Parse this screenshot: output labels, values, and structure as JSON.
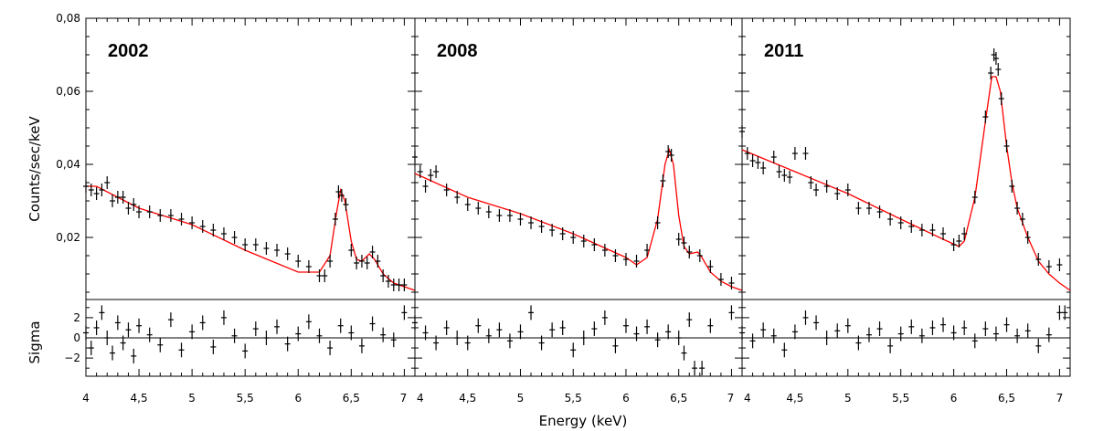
{
  "figure": {
    "ylabel_top": "Counts/sec/keV",
    "ylabel_bottom": "Sigma",
    "xlabel": "Energy (keV)"
  },
  "colors": {
    "model": "#ff0000",
    "data": "#000000",
    "frame": "#000000"
  },
  "chart_data": [
    {
      "type": "line",
      "title": "2002",
      "xlim": [
        4,
        7.1
      ],
      "ylim": [
        0.003,
        0.08
      ],
      "xticks": [
        4,
        4.5,
        5,
        5.5,
        6,
        6.5,
        7
      ],
      "xtick_labels": [
        "4",
        "4,5",
        "5",
        "5,5",
        "6",
        "6,5",
        "7"
      ],
      "yticks": [
        0.02,
        0.04,
        0.06,
        0.08
      ],
      "ytick_labels": [
        "0,02",
        "0,04",
        "0,06",
        "0,08"
      ],
      "model": {
        "x": [
          4.0,
          4.1,
          4.3,
          4.5,
          5.0,
          5.5,
          6.0,
          6.2,
          6.3,
          6.36,
          6.4,
          6.44,
          6.5,
          6.55,
          6.6,
          6.67,
          6.72,
          6.8,
          6.9,
          7.0,
          7.1
        ],
        "y": [
          0.034,
          0.034,
          0.031,
          0.028,
          0.0235,
          0.0165,
          0.0105,
          0.0105,
          0.015,
          0.0265,
          0.033,
          0.03,
          0.019,
          0.014,
          0.0135,
          0.0155,
          0.014,
          0.01,
          0.0075,
          0.0065,
          0.0055
        ]
      },
      "data": {
        "x": [
          4.0,
          4.05,
          4.1,
          4.15,
          4.2,
          4.25,
          4.3,
          4.35,
          4.4,
          4.45,
          4.5,
          4.6,
          4.7,
          4.8,
          4.9,
          5.0,
          5.1,
          5.2,
          5.3,
          5.4,
          5.5,
          5.6,
          5.7,
          5.8,
          5.9,
          6.0,
          6.1,
          6.2,
          6.25,
          6.3,
          6.35,
          6.38,
          6.41,
          6.45,
          6.5,
          6.55,
          6.6,
          6.65,
          6.7,
          6.75,
          6.8,
          6.85,
          6.9,
          6.95,
          7.0
        ],
        "y": [
          0.034,
          0.033,
          0.032,
          0.033,
          0.035,
          0.03,
          0.031,
          0.031,
          0.028,
          0.029,
          0.027,
          0.027,
          0.026,
          0.026,
          0.025,
          0.024,
          0.023,
          0.022,
          0.021,
          0.02,
          0.018,
          0.018,
          0.017,
          0.0165,
          0.0155,
          0.0135,
          0.012,
          0.0095,
          0.0095,
          0.0135,
          0.025,
          0.0325,
          0.0315,
          0.029,
          0.0165,
          0.013,
          0.0135,
          0.013,
          0.016,
          0.0135,
          0.0095,
          0.008,
          0.007,
          0.007,
          0.007
        ]
      },
      "residuals": {
        "x": [
          4.0,
          4.05,
          4.1,
          4.15,
          4.2,
          4.25,
          4.3,
          4.35,
          4.4,
          4.45,
          4.5,
          4.6,
          4.7,
          4.8,
          4.9,
          5.0,
          5.1,
          5.2,
          5.3,
          5.4,
          5.5,
          5.6,
          5.7,
          5.8,
          5.9,
          6.0,
          6.1,
          6.2,
          6.3,
          6.4,
          6.5,
          6.6,
          6.7,
          6.8,
          6.9,
          7.0
        ],
        "y": [
          0.5,
          -1.0,
          1.0,
          2.5,
          0.0,
          -1.5,
          1.5,
          -0.5,
          0.8,
          -1.8,
          1.2,
          0.3,
          -0.7,
          1.8,
          -1.2,
          0.6,
          1.5,
          -0.9,
          2.0,
          0.2,
          -1.3,
          0.9,
          0.0,
          1.1,
          -0.6,
          0.4,
          1.6,
          0.2,
          -1.0,
          1.2,
          0.5,
          -0.8,
          1.4,
          0.3,
          -0.2,
          2.5
        ]
      },
      "residual_ylim": [
        -3.8,
        3.8
      ],
      "residual_yticks": [
        -2,
        0,
        2
      ],
      "residual_ytick_labels": [
        "−2",
        "0",
        "2"
      ]
    },
    {
      "type": "line",
      "title": "2008",
      "xlim": [
        4,
        7.1
      ],
      "ylim": [
        0.003,
        0.08
      ],
      "xticks": [
        4,
        4.5,
        5,
        5.5,
        6,
        6.5,
        7
      ],
      "xtick_labels": [
        "4",
        "4,5",
        "5",
        "5,5",
        "6",
        "6,5",
        "7"
      ],
      "model": {
        "x": [
          4.0,
          4.5,
          5.0,
          5.5,
          6.0,
          6.1,
          6.2,
          6.3,
          6.37,
          6.41,
          6.45,
          6.5,
          6.55,
          6.6,
          6.68,
          6.72,
          6.8,
          6.9,
          7.0,
          7.1
        ],
        "y": [
          0.0375,
          0.031,
          0.0265,
          0.021,
          0.0145,
          0.0125,
          0.0145,
          0.025,
          0.04,
          0.044,
          0.04,
          0.026,
          0.0175,
          0.0155,
          0.016,
          0.0145,
          0.0105,
          0.008,
          0.0065,
          0.0055
        ]
      },
      "data": {
        "x": [
          4.0,
          4.05,
          4.1,
          4.15,
          4.2,
          4.3,
          4.4,
          4.5,
          4.6,
          4.7,
          4.8,
          4.9,
          5.0,
          5.1,
          5.2,
          5.3,
          5.4,
          5.5,
          5.6,
          5.7,
          5.8,
          5.9,
          6.0,
          6.1,
          6.2,
          6.3,
          6.35,
          6.4,
          6.43,
          6.5,
          6.55,
          6.6,
          6.7,
          6.8,
          6.9,
          7.0
        ],
        "y": [
          0.042,
          0.038,
          0.034,
          0.037,
          0.038,
          0.033,
          0.031,
          0.029,
          0.028,
          0.027,
          0.026,
          0.026,
          0.025,
          0.024,
          0.023,
          0.022,
          0.021,
          0.02,
          0.019,
          0.018,
          0.0165,
          0.015,
          0.014,
          0.0135,
          0.0165,
          0.024,
          0.0355,
          0.0435,
          0.0425,
          0.0195,
          0.0185,
          0.016,
          0.015,
          0.012,
          0.0085,
          0.0075
        ]
      },
      "residuals": {
        "x": [
          4.0,
          4.1,
          4.2,
          4.3,
          4.4,
          4.5,
          4.6,
          4.7,
          4.8,
          4.9,
          5.0,
          5.1,
          5.2,
          5.3,
          5.4,
          5.5,
          5.6,
          5.7,
          5.8,
          5.9,
          6.0,
          6.1,
          6.2,
          6.3,
          6.4,
          6.5,
          6.55,
          6.6,
          6.65,
          6.72,
          6.8,
          7.0
        ],
        "y": [
          1.5,
          0.5,
          -0.5,
          1.0,
          0.0,
          -0.5,
          1.2,
          0.2,
          0.8,
          -0.3,
          0.6,
          2.5,
          -0.5,
          0.8,
          1.0,
          -1.2,
          0.0,
          0.9,
          2.0,
          -0.8,
          1.2,
          0.4,
          1.1,
          -0.2,
          0.6,
          0.0,
          -1.5,
          1.8,
          -3.0,
          -3.0,
          1.2,
          2.5
        ]
      }
    },
    {
      "type": "line",
      "title": "2011",
      "xlim": [
        4,
        7.1
      ],
      "ylim": [
        0.003,
        0.08
      ],
      "xticks": [
        4,
        4.5,
        5,
        5.5,
        6,
        6.5,
        7
      ],
      "xtick_labels": [
        "4",
        "4,5",
        "5",
        "5,5",
        "6",
        "6,5",
        "7"
      ],
      "model": {
        "x": [
          4.0,
          4.5,
          5.0,
          5.5,
          5.9,
          6.05,
          6.1,
          6.2,
          6.3,
          6.36,
          6.4,
          6.44,
          6.5,
          6.55,
          6.6,
          6.7,
          6.8,
          6.9,
          7.0,
          7.1
        ],
        "y": [
          0.044,
          0.038,
          0.032,
          0.025,
          0.0195,
          0.0175,
          0.019,
          0.031,
          0.052,
          0.064,
          0.064,
          0.06,
          0.045,
          0.035,
          0.028,
          0.02,
          0.0135,
          0.01,
          0.0075,
          0.0055
        ]
      },
      "data": {
        "x": [
          4.0,
          4.05,
          4.1,
          4.15,
          4.2,
          4.3,
          4.35,
          4.4,
          4.45,
          4.5,
          4.6,
          4.65,
          4.7,
          4.8,
          4.9,
          5.0,
          5.1,
          5.2,
          5.3,
          5.4,
          5.5,
          5.6,
          5.7,
          5.8,
          5.9,
          6.0,
          6.05,
          6.1,
          6.2,
          6.3,
          6.35,
          6.38,
          6.4,
          6.42,
          6.45,
          6.5,
          6.55,
          6.6,
          6.65,
          6.7,
          6.8,
          6.9,
          7.0
        ],
        "y": [
          0.049,
          0.043,
          0.041,
          0.0405,
          0.039,
          0.042,
          0.038,
          0.037,
          0.0365,
          0.043,
          0.043,
          0.035,
          0.033,
          0.034,
          0.032,
          0.033,
          0.028,
          0.028,
          0.027,
          0.025,
          0.024,
          0.023,
          0.022,
          0.022,
          0.021,
          0.018,
          0.019,
          0.021,
          0.031,
          0.053,
          0.065,
          0.07,
          0.069,
          0.066,
          0.058,
          0.045,
          0.034,
          0.028,
          0.025,
          0.02,
          0.014,
          0.012,
          0.0125
        ]
      },
      "residuals": {
        "x": [
          4.0,
          4.1,
          4.2,
          4.3,
          4.4,
          4.5,
          4.6,
          4.7,
          4.8,
          4.9,
          5.0,
          5.1,
          5.2,
          5.3,
          5.4,
          5.5,
          5.6,
          5.7,
          5.8,
          5.9,
          6.0,
          6.1,
          6.2,
          6.3,
          6.4,
          6.5,
          6.6,
          6.7,
          6.8,
          6.9,
          7.0,
          7.05
        ],
        "y": [
          0.5,
          -0.3,
          0.8,
          0.2,
          -1.2,
          0.6,
          2.0,
          1.5,
          0.0,
          0.7,
          1.2,
          -0.5,
          0.3,
          0.9,
          -0.8,
          0.4,
          1.1,
          0.2,
          1.0,
          1.3,
          0.5,
          1.0,
          -0.3,
          0.9,
          0.4,
          1.3,
          0.2,
          0.7,
          -0.8,
          0.3,
          2.5,
          2.5
        ]
      }
    }
  ]
}
